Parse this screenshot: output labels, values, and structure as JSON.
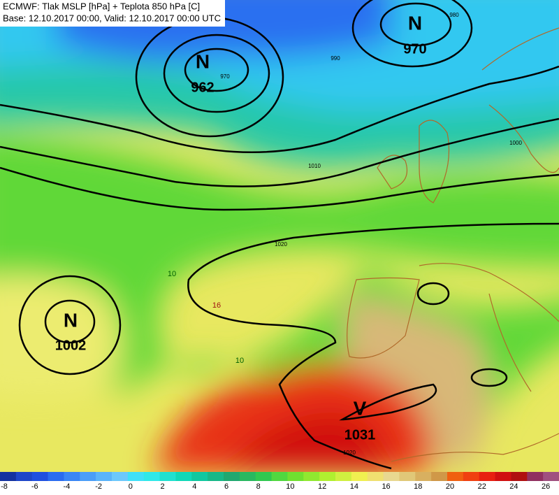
{
  "header": {
    "line1": "ECMWF: Tlak MSLP [hPa] + Teplota 850 hPa [C]",
    "line2": "Base: 12.10.2017 00:00, Valid: 12.10.2017 00:00 UTC"
  },
  "pressure_centers": [
    {
      "letter": "N",
      "value": "962"
    },
    {
      "letter": "N",
      "value": "970"
    },
    {
      "letter": "N",
      "value": "1002"
    },
    {
      "letter": "V",
      "value": "1031"
    }
  ],
  "isobar_labels": [
    "970",
    "980",
    "990",
    "1000",
    "1010",
    "1020",
    "1020"
  ],
  "temperature_labels": [
    "10",
    "16",
    "10"
  ],
  "colorbar": {
    "ticks": [
      -8,
      -6,
      -4,
      -2,
      0,
      2,
      4,
      6,
      8,
      10,
      12,
      14,
      16,
      18,
      20,
      22,
      24,
      26
    ],
    "colors": [
      "#1432a0",
      "#1e46c8",
      "#2050e0",
      "#2a6cf0",
      "#3a86f5",
      "#4a9ef8",
      "#5ab4fa",
      "#6cc8fc",
      "#40e0f8",
      "#30e8e8",
      "#20e0d0",
      "#10d8b8",
      "#10c8a0",
      "#18b888",
      "#20a870",
      "#28b860",
      "#30c850",
      "#50d840",
      "#70e030",
      "#90e830",
      "#b0f030",
      "#d0f040",
      "#f0f050",
      "#f0e070",
      "#e8d890",
      "#e0c878",
      "#d8b060",
      "#d09848",
      "#f06010",
      "#f04010",
      "#e82010",
      "#d01010",
      "#b01010",
      "#903060",
      "#a05080"
    ]
  }
}
